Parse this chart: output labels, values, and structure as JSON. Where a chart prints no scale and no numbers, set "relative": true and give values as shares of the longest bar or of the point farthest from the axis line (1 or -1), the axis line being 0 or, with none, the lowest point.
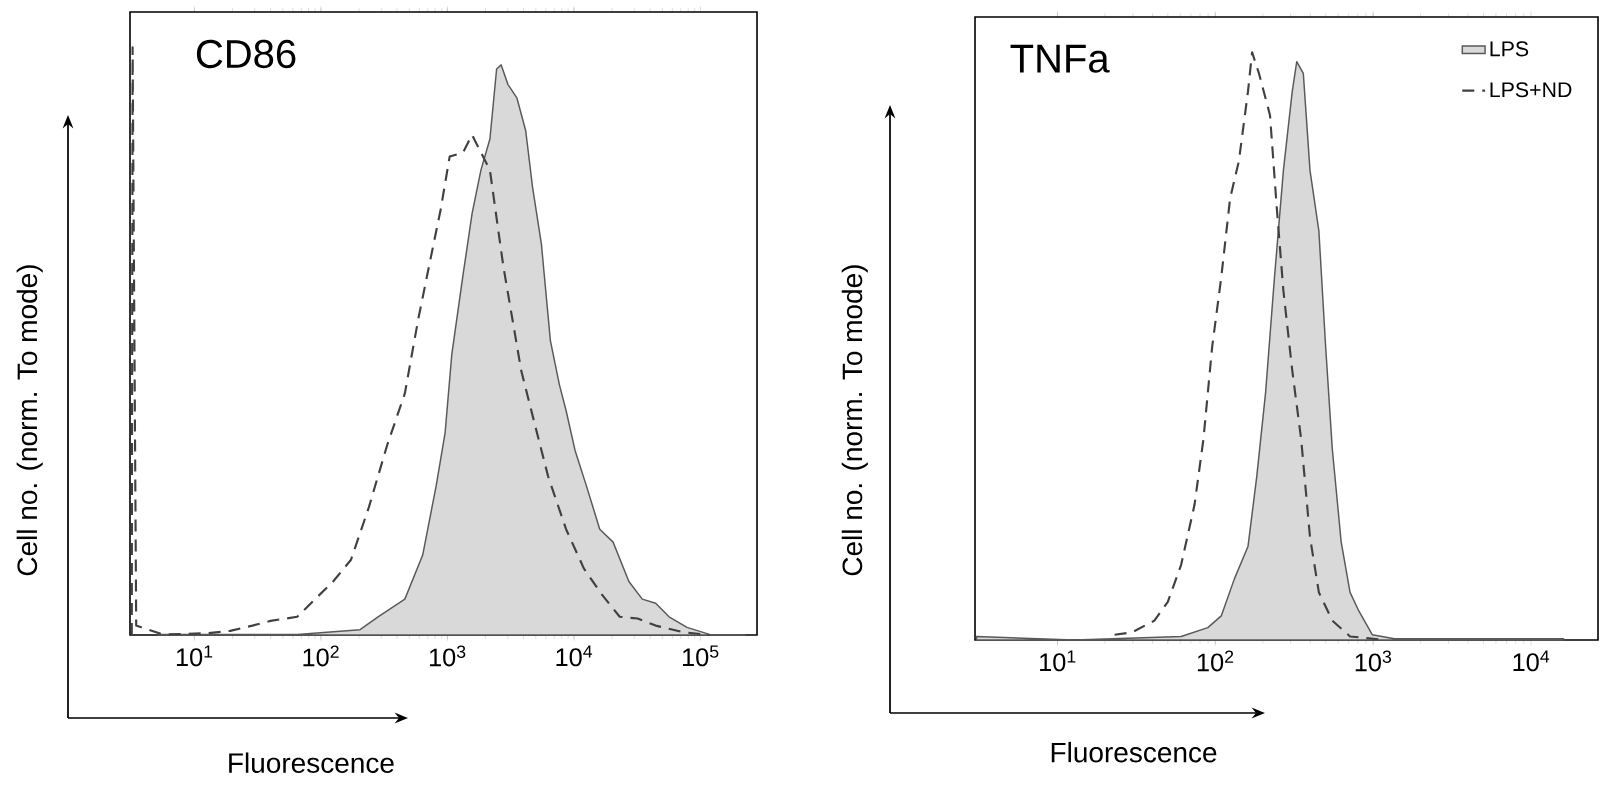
{
  "chart_data": [
    {
      "type": "line",
      "title": "CD86",
      "xlabel": "Fluorescence",
      "ylabel": "Cell no. (norm. To mode)",
      "log": "x",
      "relative": true,
      "tick_labels": "x",
      "xlim": [
        3.1,
        280000
      ],
      "xticks": [
        {
          "value": 10,
          "label": "10$^{1}$"
        },
        {
          "value": 100,
          "label": "10$^{2}$"
        },
        {
          "value": 1000,
          "label": "10$^{3}$"
        },
        {
          "value": 10000,
          "label": "10$^{4}$"
        },
        {
          "value": 100000,
          "label": "10$^{5}$"
        }
      ],
      "series": [
        {
          "type": "area",
          "color": "#d9d9d9",
          "line_style": "solid",
          "x": [
            5.2,
            65,
            204,
            283,
            461,
            638,
            817,
            959,
            1084,
            1330,
            1567,
            1841,
            2168,
            2449,
            2661,
            3006,
            3540,
            4159,
            4710,
            5534,
            6516,
            7674,
            8670,
            10210,
            12500,
            16000,
            20400,
            27200,
            34700,
            44300,
            56500,
            78300,
            117800,
            226000
          ],
          "values": [
            0.001,
            0.001,
            0.009,
            0.031,
            0.061,
            0.136,
            0.255,
            0.344,
            0.478,
            0.613,
            0.717,
            0.791,
            0.844,
            0.963,
            0.97,
            0.937,
            0.914,
            0.858,
            0.762,
            0.665,
            0.501,
            0.426,
            0.382,
            0.314,
            0.255,
            0.18,
            0.158,
            0.091,
            0.061,
            0.054,
            0.031,
            0.013,
            0.001,
            0
          ]
        },
        {
          "color": "#404040",
          "line_style": "dashed",
          "x": [
            3.2,
            3.25,
            3.47,
            5.6,
            12.8,
            19.2,
            28.8,
            40,
            65,
            90,
            125,
            173,
            240,
            333,
            461,
            589,
            752,
            885,
            1042,
            1330,
            1567,
            1841,
            2168,
            2449,
            2770,
            3260,
            3840,
            4900,
            6250,
            8670,
            12000,
            16600,
            23000,
            31900,
            44300,
            72100,
            117800
          ],
          "values": [
            0,
            1.0,
            0.016,
            0.001,
            0.003,
            0.007,
            0.016,
            0.024,
            0.031,
            0.061,
            0.091,
            0.128,
            0.218,
            0.322,
            0.411,
            0.538,
            0.65,
            0.724,
            0.814,
            0.821,
            0.851,
            0.821,
            0.791,
            0.709,
            0.627,
            0.538,
            0.449,
            0.359,
            0.27,
            0.18,
            0.113,
            0.069,
            0.031,
            0.028,
            0.016,
            0.005,
            0
          ]
        }
      ]
    },
    {
      "type": "line",
      "title": "TNFa",
      "xlabel": "Fluorescence",
      "ylabel": "Cell no. (norm. To mode)",
      "log": "x",
      "relative": true,
      "tick_labels": "x",
      "legend": "top right",
      "xlim": [
        3.0,
        26600
      ],
      "xticks": [
        {
          "value": 10,
          "label": "10$^{1}$"
        },
        {
          "value": 100,
          "label": "10$^{2}$"
        },
        {
          "value": 1000,
          "label": "10$^{3}$"
        },
        {
          "value": 10000,
          "label": "10$^{4}$"
        }
      ],
      "series": [
        {
          "name": "LPS",
          "type": "area",
          "color": "#d9d9d9",
          "line_style": "solid",
          "x": [
            3.07,
            12.8,
            60.7,
            89.6,
            109,
            132,
            161,
            183,
            208,
            237,
            270,
            307,
            328,
            361,
            398,
            453,
            500,
            551,
            627,
            714,
            813,
            987,
            1365,
            16100
          ],
          "values": [
            0.006,
            0,
            0.006,
            0.021,
            0.041,
            0.104,
            0.159,
            0.278,
            0.42,
            0.617,
            0.799,
            0.933,
            0.984,
            0.964,
            0.799,
            0.696,
            0.499,
            0.325,
            0.167,
            0.081,
            0.049,
            0.009,
            0.002,
            0.002
          ]
        },
        {
          "name": "LPS+ND",
          "color": "#404040",
          "line_style": "dashed",
          "x": [
            23,
            29.7,
            41.1,
            50,
            60.7,
            73.8,
            84,
            95.5,
            109,
            124,
            141,
            161,
            171,
            189,
            222,
            245,
            270,
            307,
            350,
            398,
            453,
            551,
            714,
            1200
          ],
          "values": [
            0.009,
            0.013,
            0.033,
            0.065,
            0.128,
            0.23,
            0.341,
            0.499,
            0.617,
            0.751,
            0.815,
            0.933,
            1.0,
            0.964,
            0.893,
            0.736,
            0.594,
            0.459,
            0.341,
            0.175,
            0.081,
            0.033,
            0.006,
            0
          ]
        }
      ]
    }
  ]
}
